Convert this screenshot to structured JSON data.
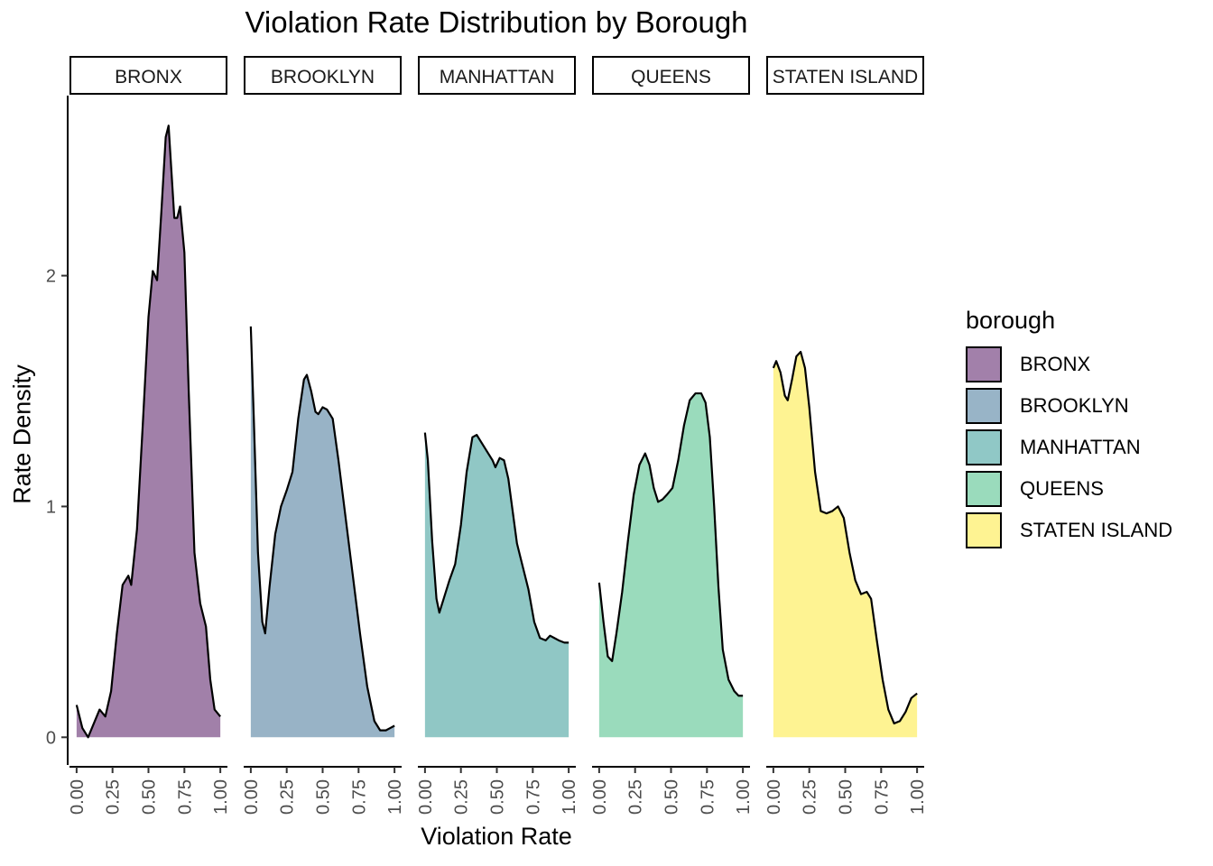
{
  "chart_data": {
    "type": "area",
    "title": "Violation Rate Distribution by Borough",
    "xlabel": "Violation Rate",
    "ylabel": "Rate Density",
    "xlim": [
      0,
      1
    ],
    "ylim": [
      -0.12,
      2.78
    ],
    "x_ticks": [
      "0.00",
      "0.25",
      "0.50",
      "0.75",
      "1.00"
    ],
    "y_ticks": [
      "0",
      "1",
      "2"
    ],
    "legend": {
      "title": "borough",
      "position": "right"
    },
    "series": [
      {
        "name": "BRONX",
        "color": "#440154",
        "points": [
          [
            0.0,
            0.14
          ],
          [
            0.04,
            0.04
          ],
          [
            0.08,
            0.0
          ],
          [
            0.12,
            0.06
          ],
          [
            0.16,
            0.12
          ],
          [
            0.2,
            0.09
          ],
          [
            0.24,
            0.2
          ],
          [
            0.28,
            0.45
          ],
          [
            0.32,
            0.66
          ],
          [
            0.36,
            0.7
          ],
          [
            0.38,
            0.66
          ],
          [
            0.42,
            0.9
          ],
          [
            0.46,
            1.35
          ],
          [
            0.5,
            1.82
          ],
          [
            0.53,
            2.02
          ],
          [
            0.56,
            1.98
          ],
          [
            0.59,
            2.28
          ],
          [
            0.62,
            2.6
          ],
          [
            0.64,
            2.65
          ],
          [
            0.66,
            2.45
          ],
          [
            0.68,
            2.25
          ],
          [
            0.7,
            2.25
          ],
          [
            0.72,
            2.3
          ],
          [
            0.75,
            2.1
          ],
          [
            0.78,
            1.5
          ],
          [
            0.82,
            0.8
          ],
          [
            0.86,
            0.58
          ],
          [
            0.9,
            0.48
          ],
          [
            0.93,
            0.25
          ],
          [
            0.96,
            0.12
          ],
          [
            1.0,
            0.09
          ]
        ]
      },
      {
        "name": "BROOKLYN",
        "color": "#31688e",
        "points": [
          [
            0.0,
            1.78
          ],
          [
            0.02,
            1.4
          ],
          [
            0.05,
            0.8
          ],
          [
            0.08,
            0.5
          ],
          [
            0.1,
            0.45
          ],
          [
            0.13,
            0.65
          ],
          [
            0.17,
            0.88
          ],
          [
            0.21,
            1.0
          ],
          [
            0.25,
            1.07
          ],
          [
            0.29,
            1.15
          ],
          [
            0.33,
            1.38
          ],
          [
            0.37,
            1.55
          ],
          [
            0.39,
            1.57
          ],
          [
            0.42,
            1.5
          ],
          [
            0.45,
            1.41
          ],
          [
            0.47,
            1.4
          ],
          [
            0.5,
            1.43
          ],
          [
            0.53,
            1.42
          ],
          [
            0.57,
            1.38
          ],
          [
            0.61,
            1.2
          ],
          [
            0.66,
            0.95
          ],
          [
            0.71,
            0.7
          ],
          [
            0.76,
            0.45
          ],
          [
            0.81,
            0.22
          ],
          [
            0.86,
            0.07
          ],
          [
            0.9,
            0.03
          ],
          [
            0.94,
            0.03
          ],
          [
            0.97,
            0.04
          ],
          [
            1.0,
            0.05
          ]
        ]
      },
      {
        "name": "MANHATTAN",
        "color": "#21908c",
        "points": [
          [
            0.0,
            1.32
          ],
          [
            0.02,
            1.2
          ],
          [
            0.05,
            0.85
          ],
          [
            0.08,
            0.6
          ],
          [
            0.1,
            0.54
          ],
          [
            0.13,
            0.6
          ],
          [
            0.17,
            0.68
          ],
          [
            0.21,
            0.75
          ],
          [
            0.25,
            0.92
          ],
          [
            0.29,
            1.15
          ],
          [
            0.33,
            1.3
          ],
          [
            0.36,
            1.31
          ],
          [
            0.39,
            1.28
          ],
          [
            0.43,
            1.24
          ],
          [
            0.47,
            1.2
          ],
          [
            0.49,
            1.17
          ],
          [
            0.52,
            1.21
          ],
          [
            0.55,
            1.2
          ],
          [
            0.58,
            1.12
          ],
          [
            0.61,
            0.98
          ],
          [
            0.64,
            0.84
          ],
          [
            0.68,
            0.74
          ],
          [
            0.72,
            0.64
          ],
          [
            0.76,
            0.5
          ],
          [
            0.8,
            0.43
          ],
          [
            0.84,
            0.42
          ],
          [
            0.87,
            0.44
          ],
          [
            0.9,
            0.43
          ],
          [
            0.93,
            0.42
          ],
          [
            0.97,
            0.41
          ],
          [
            1.0,
            0.41
          ]
        ]
      },
      {
        "name": "QUEENS",
        "color": "#35b779",
        "points": [
          [
            0.0,
            0.67
          ],
          [
            0.03,
            0.5
          ],
          [
            0.06,
            0.35
          ],
          [
            0.09,
            0.33
          ],
          [
            0.12,
            0.45
          ],
          [
            0.16,
            0.63
          ],
          [
            0.2,
            0.85
          ],
          [
            0.24,
            1.05
          ],
          [
            0.28,
            1.18
          ],
          [
            0.32,
            1.23
          ],
          [
            0.35,
            1.18
          ],
          [
            0.38,
            1.08
          ],
          [
            0.41,
            1.02
          ],
          [
            0.44,
            1.03
          ],
          [
            0.47,
            1.05
          ],
          [
            0.51,
            1.08
          ],
          [
            0.55,
            1.2
          ],
          [
            0.59,
            1.35
          ],
          [
            0.63,
            1.46
          ],
          [
            0.67,
            1.49
          ],
          [
            0.71,
            1.49
          ],
          [
            0.74,
            1.45
          ],
          [
            0.77,
            1.3
          ],
          [
            0.8,
            1.0
          ],
          [
            0.83,
            0.65
          ],
          [
            0.86,
            0.38
          ],
          [
            0.9,
            0.25
          ],
          [
            0.94,
            0.2
          ],
          [
            0.97,
            0.18
          ],
          [
            1.0,
            0.18
          ]
        ]
      },
      {
        "name": "STATEN ISLAND",
        "color": "#fde725",
        "points": [
          [
            0.0,
            1.6
          ],
          [
            0.02,
            1.63
          ],
          [
            0.05,
            1.58
          ],
          [
            0.08,
            1.48
          ],
          [
            0.1,
            1.46
          ],
          [
            0.13,
            1.55
          ],
          [
            0.16,
            1.65
          ],
          [
            0.19,
            1.67
          ],
          [
            0.22,
            1.6
          ],
          [
            0.25,
            1.43
          ],
          [
            0.29,
            1.15
          ],
          [
            0.33,
            0.98
          ],
          [
            0.37,
            0.97
          ],
          [
            0.41,
            0.98
          ],
          [
            0.45,
            1.0
          ],
          [
            0.49,
            0.95
          ],
          [
            0.53,
            0.8
          ],
          [
            0.57,
            0.68
          ],
          [
            0.61,
            0.62
          ],
          [
            0.65,
            0.63
          ],
          [
            0.68,
            0.6
          ],
          [
            0.72,
            0.42
          ],
          [
            0.76,
            0.25
          ],
          [
            0.8,
            0.12
          ],
          [
            0.84,
            0.06
          ],
          [
            0.88,
            0.07
          ],
          [
            0.92,
            0.11
          ],
          [
            0.96,
            0.17
          ],
          [
            1.0,
            0.19
          ]
        ]
      }
    ]
  }
}
